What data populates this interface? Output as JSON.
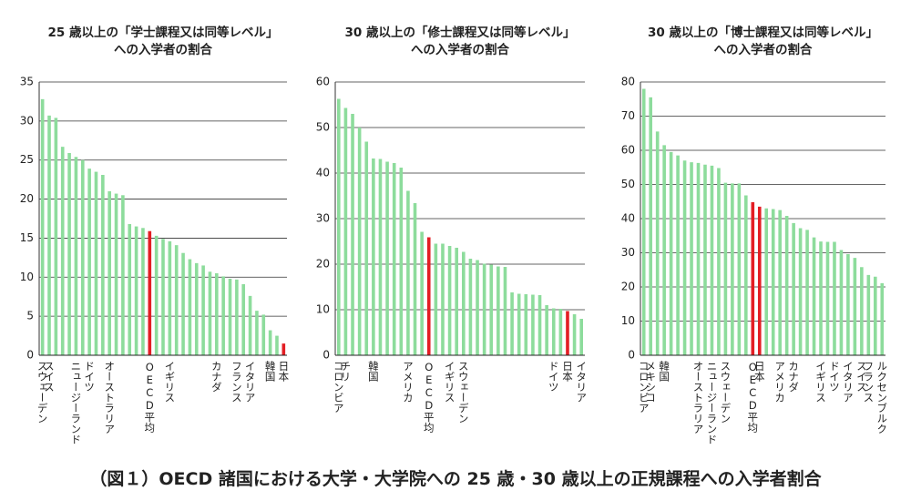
{
  "caption": "（図１）OECD 諸国における大学・大学院への 25 歳・30 歳以上の正規課程への入学者割合",
  "chart_data": [
    {
      "type": "bar",
      "title": [
        "25 歳以上の「学士課程又は同等レベル」",
        "への入学者の割合"
      ],
      "categories": [
        "スウェーデン",
        "スイス",
        null,
        null,
        null,
        "ニュージーランド",
        null,
        "ドイツ",
        null,
        null,
        "オーストラリア",
        null,
        null,
        null,
        null,
        null,
        "OECD平均",
        null,
        null,
        "イギリス",
        null,
        null,
        null,
        null,
        null,
        null,
        "カナダ",
        null,
        null,
        "フランス",
        null,
        "イタリア",
        null,
        null,
        "韓国",
        null,
        "日本"
      ],
      "values": [
        32.8,
        30.7,
        30.4,
        26.7,
        25.9,
        25.4,
        25.0,
        23.9,
        23.5,
        23.1,
        21.0,
        20.7,
        20.5,
        16.8,
        16.5,
        16.3,
        15.9,
        15.3,
        14.9,
        14.6,
        14.1,
        13.1,
        12.3,
        11.8,
        11.5,
        10.7,
        10.5,
        10.1,
        9.8,
        9.7,
        9.1,
        7.6,
        5.7,
        5.2,
        3.2,
        2.5,
        1.5
      ],
      "colors": [
        "#8ddc9c",
        "#8ddc9c",
        "#8ddc9c",
        "#8ddc9c",
        "#8ddc9c",
        "#8ddc9c",
        "#8ddc9c",
        "#8ddc9c",
        "#8ddc9c",
        "#8ddc9c",
        "#8ddc9c",
        "#8ddc9c",
        "#8ddc9c",
        "#8ddc9c",
        "#8ddc9c",
        "#8ddc9c",
        "#e31e24",
        "#8ddc9c",
        "#8ddc9c",
        "#8ddc9c",
        "#8ddc9c",
        "#8ddc9c",
        "#8ddc9c",
        "#8ddc9c",
        "#8ddc9c",
        "#8ddc9c",
        "#8ddc9c",
        "#8ddc9c",
        "#8ddc9c",
        "#8ddc9c",
        "#8ddc9c",
        "#8ddc9c",
        "#8ddc9c",
        "#8ddc9c",
        "#8ddc9c",
        "#8ddc9c",
        "#e31e24"
      ],
      "ylim": [
        0,
        35
      ],
      "yticks": [
        0,
        5,
        10,
        15,
        20,
        25,
        30,
        35
      ],
      "grid": true
    },
    {
      "type": "bar",
      "title": [
        "30 歳以上の「修士課程又は同等レベル」",
        "への入学者の割合"
      ],
      "categories": [
        "コロンビア",
        "チリ",
        null,
        null,
        null,
        "韓国",
        null,
        null,
        null,
        null,
        "アメリカ",
        null,
        null,
        "OECD平均",
        null,
        null,
        "イギリス",
        null,
        "スウェーデン",
        null,
        null,
        null,
        null,
        null,
        null,
        null,
        null,
        null,
        null,
        null,
        null,
        "ドイツ",
        null,
        "日本",
        null,
        "イタリア"
      ],
      "values": [
        56.3,
        54.3,
        53.0,
        50.0,
        46.9,
        43.2,
        43.1,
        42.5,
        42.2,
        41.2,
        36.1,
        33.4,
        27.1,
        25.9,
        24.5,
        24.5,
        24.0,
        23.6,
        22.7,
        21.2,
        20.9,
        20.1,
        19.9,
        19.5,
        19.4,
        13.8,
        13.5,
        13.4,
        13.3,
        13.2,
        11.0,
        10.3,
        10.2,
        9.7,
        9.0,
        8.0
      ],
      "colors": [
        "#8ddc9c",
        "#8ddc9c",
        "#8ddc9c",
        "#8ddc9c",
        "#8ddc9c",
        "#8ddc9c",
        "#8ddc9c",
        "#8ddc9c",
        "#8ddc9c",
        "#8ddc9c",
        "#8ddc9c",
        "#8ddc9c",
        "#8ddc9c",
        "#e31e24",
        "#8ddc9c",
        "#8ddc9c",
        "#8ddc9c",
        "#8ddc9c",
        "#8ddc9c",
        "#8ddc9c",
        "#8ddc9c",
        "#8ddc9c",
        "#8ddc9c",
        "#8ddc9c",
        "#8ddc9c",
        "#8ddc9c",
        "#8ddc9c",
        "#8ddc9c",
        "#8ddc9c",
        "#8ddc9c",
        "#8ddc9c",
        "#8ddc9c",
        "#8ddc9c",
        "#e31e24",
        "#8ddc9c",
        "#8ddc9c"
      ],
      "ylim": [
        0,
        60
      ],
      "yticks": [
        0,
        10,
        20,
        30,
        40,
        50,
        60
      ],
      "grid": true
    },
    {
      "type": "bar",
      "title": [
        "30 歳以上の「博士課程又は同等レベル」",
        "への入学者の割合"
      ],
      "categories": [
        "コロンビア",
        "メキシコ",
        null,
        "韓国",
        null,
        null,
        null,
        null,
        "オーストラリア",
        null,
        "ニュージーランド",
        null,
        "スウェーデン",
        null,
        null,
        null,
        "OECD平均",
        "日本",
        null,
        null,
        "アメリカ",
        null,
        "カナダ",
        null,
        null,
        null,
        "イギリス",
        null,
        "ドイツ",
        null,
        "イタリア",
        null,
        "スイス",
        "フランス",
        null,
        "ルクセンブルク"
      ],
      "values": [
        78.0,
        75.5,
        65.5,
        61.5,
        59.5,
        58.5,
        57.0,
        56.5,
        56.3,
        55.8,
        55.5,
        54.8,
        50.5,
        50.3,
        50.3,
        46.8,
        44.8,
        43.5,
        43.0,
        42.8,
        42.5,
        40.8,
        38.7,
        37.2,
        36.7,
        34.5,
        33.3,
        33.2,
        33.2,
        30.8,
        29.6,
        28.5,
        25.8,
        23.5,
        23.0,
        21.1
      ],
      "colors": [
        "#8ddc9c",
        "#8ddc9c",
        "#8ddc9c",
        "#8ddc9c",
        "#8ddc9c",
        "#8ddc9c",
        "#8ddc9c",
        "#8ddc9c",
        "#8ddc9c",
        "#8ddc9c",
        "#8ddc9c",
        "#8ddc9c",
        "#8ddc9c",
        "#8ddc9c",
        "#8ddc9c",
        "#8ddc9c",
        "#e31e24",
        "#e31e24",
        "#8ddc9c",
        "#8ddc9c",
        "#8ddc9c",
        "#8ddc9c",
        "#8ddc9c",
        "#8ddc9c",
        "#8ddc9c",
        "#8ddc9c",
        "#8ddc9c",
        "#8ddc9c",
        "#8ddc9c",
        "#8ddc9c",
        "#8ddc9c",
        "#8ddc9c",
        "#8ddc9c",
        "#8ddc9c",
        "#8ddc9c",
        "#8ddc9c"
      ],
      "ylim": [
        0,
        80
      ],
      "yticks": [
        0,
        10,
        20,
        30,
        40,
        50,
        60,
        70,
        80
      ],
      "grid": true
    }
  ]
}
